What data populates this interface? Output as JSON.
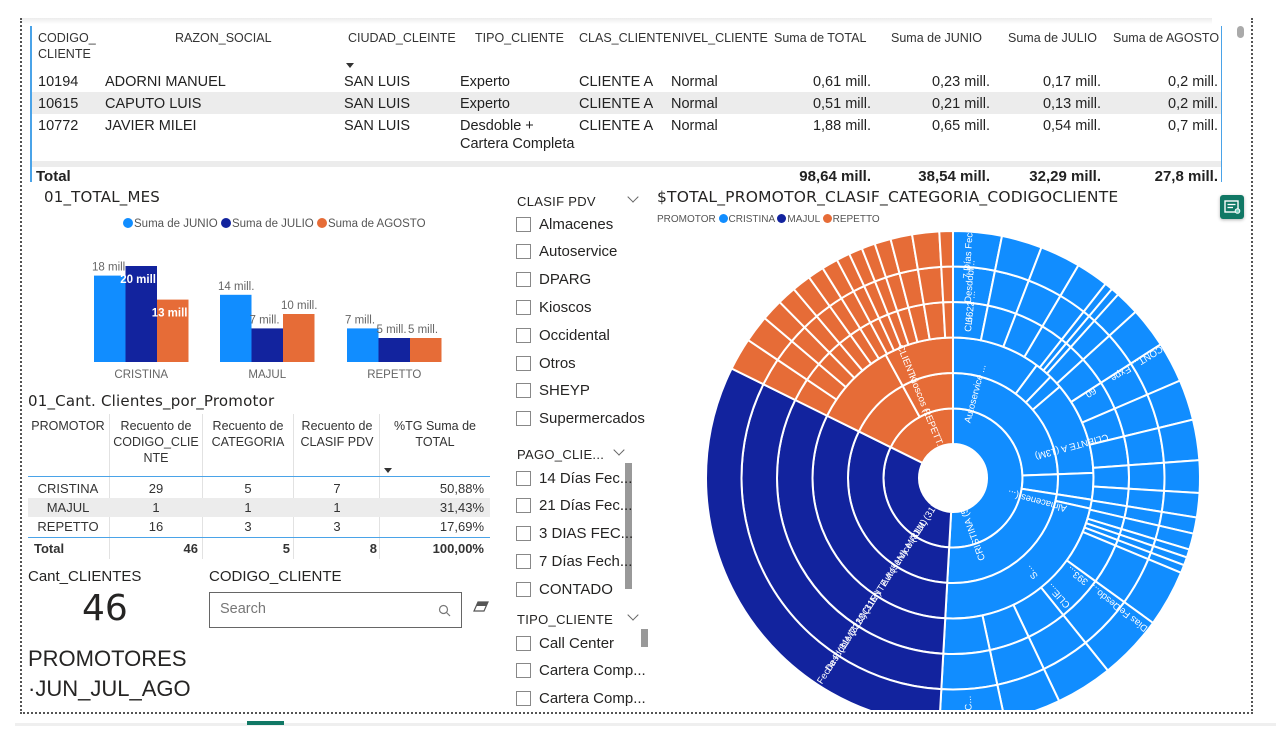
{
  "colors": {
    "junio": "#118DFF",
    "julio": "#12239E",
    "agosto": "#E66C37",
    "accent": "#4aa3e8",
    "teal": "#117865"
  },
  "clients_table": {
    "headers": [
      "CODIGO_\nCLIENTE",
      "RAZON_SOCIAL",
      "CIUDAD_CLEINTE",
      "TIPO_CLIENTE",
      "CLAS_CLIENTE",
      "NIVEL_CLIENTE",
      "Suma de TOTAL",
      "Suma de JUNIO",
      "Suma de JULIO",
      "Suma de AGOSTO"
    ],
    "header_lines": {
      "codigo_1": "CODIGO_",
      "codigo_2": "CLIENTE"
    },
    "rows": [
      {
        "codigo": "10194",
        "razon": "ADORNI MANUEL",
        "ciudad": "SAN LUIS",
        "tipo": "Experto",
        "tipo2": "",
        "clas": "CLIENTE A",
        "nivel": "Normal",
        "total": "0,61 mill.",
        "junio": "0,23 mill.",
        "julio": "0,17 mill.",
        "agosto": "0,2 mill."
      },
      {
        "codigo": "10615",
        "razon": "CAPUTO LUIS",
        "ciudad": "SAN LUIS",
        "tipo": "Experto",
        "tipo2": "",
        "clas": "CLIENTE A",
        "nivel": "Normal",
        "total": "0,51 mill.",
        "junio": "0,21 mill.",
        "julio": "0,13 mill.",
        "agosto": "0,2 mill."
      },
      {
        "codigo": "10772",
        "razon": "JAVIER MILEI",
        "ciudad": "SAN LUIS",
        "tipo": "Desdoble +",
        "tipo2": "Cartera Completa",
        "clas": "CLIENTE A",
        "nivel": "Normal",
        "total": "1,88 mill.",
        "junio": "0,65 mill.",
        "julio": "0,54 mill.",
        "agosto": "0,7 mill."
      }
    ],
    "total": {
      "label": "Total",
      "total": "98,64 mill.",
      "junio": "38,54 mill.",
      "julio": "32,29 mill.",
      "agosto": "27,8 mill."
    }
  },
  "bar_visual": {
    "title": "01_TOTAL_MES"
  },
  "chart_data": [
    {
      "type": "bar",
      "title": "01_TOTAL_MES",
      "xlabel": "",
      "ylabel": "",
      "categories": [
        "CRISTINA",
        "MAJUL",
        "REPETTO"
      ],
      "series": [
        {
          "name": "Suma de JUNIO",
          "color": "#118DFF",
          "values": [
            18,
            14,
            7
          ],
          "labels": [
            "18 mill.",
            "14 mill.",
            "7 mill."
          ]
        },
        {
          "name": "Suma de JULIO",
          "color": "#12239E",
          "values": [
            20,
            7,
            5
          ],
          "labels": [
            "20 mill",
            "7 mill.",
            "5 mill."
          ]
        },
        {
          "name": "Suma de AGOSTO",
          "color": "#E66C37",
          "values": [
            13,
            10,
            5
          ],
          "labels": [
            "13 mill",
            "10 mill.",
            "5 mill."
          ]
        }
      ],
      "ylim": [
        0,
        20
      ],
      "units": "millones",
      "grid": false,
      "legend": "top-center"
    },
    {
      "type": "sunburst",
      "title": "$TOTAL_PROMOTOR_CLASIF_CATEGORIA_CODIGOCLIENTE",
      "legend_title": "PROMOTOR",
      "legend": "top-left",
      "levels": [
        "PROMOTOR",
        "CLASIF PDV",
        "CLAS_CLIENTE",
        "CODIGO_CLIENTE",
        "TIPO_CLIENTE",
        "PAGO_CLIENTE"
      ],
      "series": [
        {
          "name": "CRISTINA",
          "color": "#118DFF",
          "share": 0.5088,
          "label": "CRISTINA (50M)"
        },
        {
          "name": "MAJUL",
          "color": "#12239E",
          "share": 0.3143,
          "label": "MAJUL (31M)"
        },
        {
          "name": "REPETTO",
          "color": "#E66C37",
          "share": 0.1769,
          "label": "REPETT..."
        }
      ],
      "visible_labels": {
        "majul_path": [
          "MAJUL (31M)",
          "Autoservice (31M)",
          "CLIENTE A (31M)",
          "7223 (31M)",
          "Desdoble (31M)",
          "14 Días Fecha F (31M)"
        ],
        "repetto_path": [
          "REPETT...",
          "Kioscos (...",
          "CLIENT..."
        ],
        "cristina_labels": [
          "CRISTINA (50M)",
          "Autoservice ...",
          "Almacenes (...",
          "CLIENTE A (13M)",
          "S...",
          "CLIE...",
          "CLI...",
          "6622 ...",
          "Desdobl...",
          "7 Días Fech...",
          "60...",
          "Expe...",
          "CONT...",
          "393...",
          "Desdo...",
          "7 Días Fe...",
          "C..."
        ]
      }
    }
  ],
  "promotor_table": {
    "title": "01_Cant. Clientes_por_Promotor",
    "headers": [
      "PROMOTOR",
      "Recuento de\nCODIGO_CLIE\nNTE",
      "Recuento de\nCATEGORIA",
      "Recuento de\nCLASIF PDV",
      "%TG Suma de\nTOTAL"
    ],
    "header_parts": {
      "h1": "PROMOTOR",
      "h2a": "Recuento de",
      "h2b": "CODIGO_CLIE",
      "h2c": "NTE",
      "h3a": "Recuento de",
      "h3b": "CATEGORIA",
      "h4a": "Recuento de",
      "h4b": "CLASIF PDV",
      "h5a": "%TG Suma de",
      "h5b": "TOTAL"
    },
    "rows": [
      {
        "promotor": "CRISTINA",
        "codigo": "29",
        "categoria": "5",
        "clasif": "7",
        "pct": "50,88%"
      },
      {
        "promotor": "MAJUL",
        "codigo": "1",
        "categoria": "1",
        "clasif": "1",
        "pct": "31,43%"
      },
      {
        "promotor": "REPETTO",
        "codigo": "16",
        "categoria": "3",
        "clasif": "3",
        "pct": "17,69%"
      }
    ],
    "total": {
      "label": "Total",
      "codigo": "46",
      "categoria": "5",
      "clasif": "8",
      "pct": "100,00%"
    }
  },
  "card": {
    "title": "Cant_CLIENTES",
    "value": "46"
  },
  "textbox": {
    "line1": "PROMOTORES",
    "line2": "·JUN_JUL_AGO"
  },
  "search_slicer": {
    "title": "CODIGO_CLIENTE",
    "placeholder": "Search",
    "value": ""
  },
  "slicers": {
    "clasif_pdv": {
      "title": "CLASIF PDV",
      "items": [
        "Almacenes",
        "Autoservice",
        "DPARG",
        "Kioscos",
        "Occidental",
        "Otros",
        "SHEYP",
        "Supermercados"
      ]
    },
    "pago_cliente": {
      "title": "PAGO_CLIE...",
      "items": [
        "14 Días Fec...",
        "21 Días Fec...",
        "3 DIAS FEC...",
        "7 Días Fech...",
        "CONTADO"
      ]
    },
    "tipo_cliente": {
      "title": "TIPO_CLIENTE",
      "items": [
        "Call Center",
        "Cartera Comp...",
        "Cartera Comp..."
      ]
    }
  }
}
